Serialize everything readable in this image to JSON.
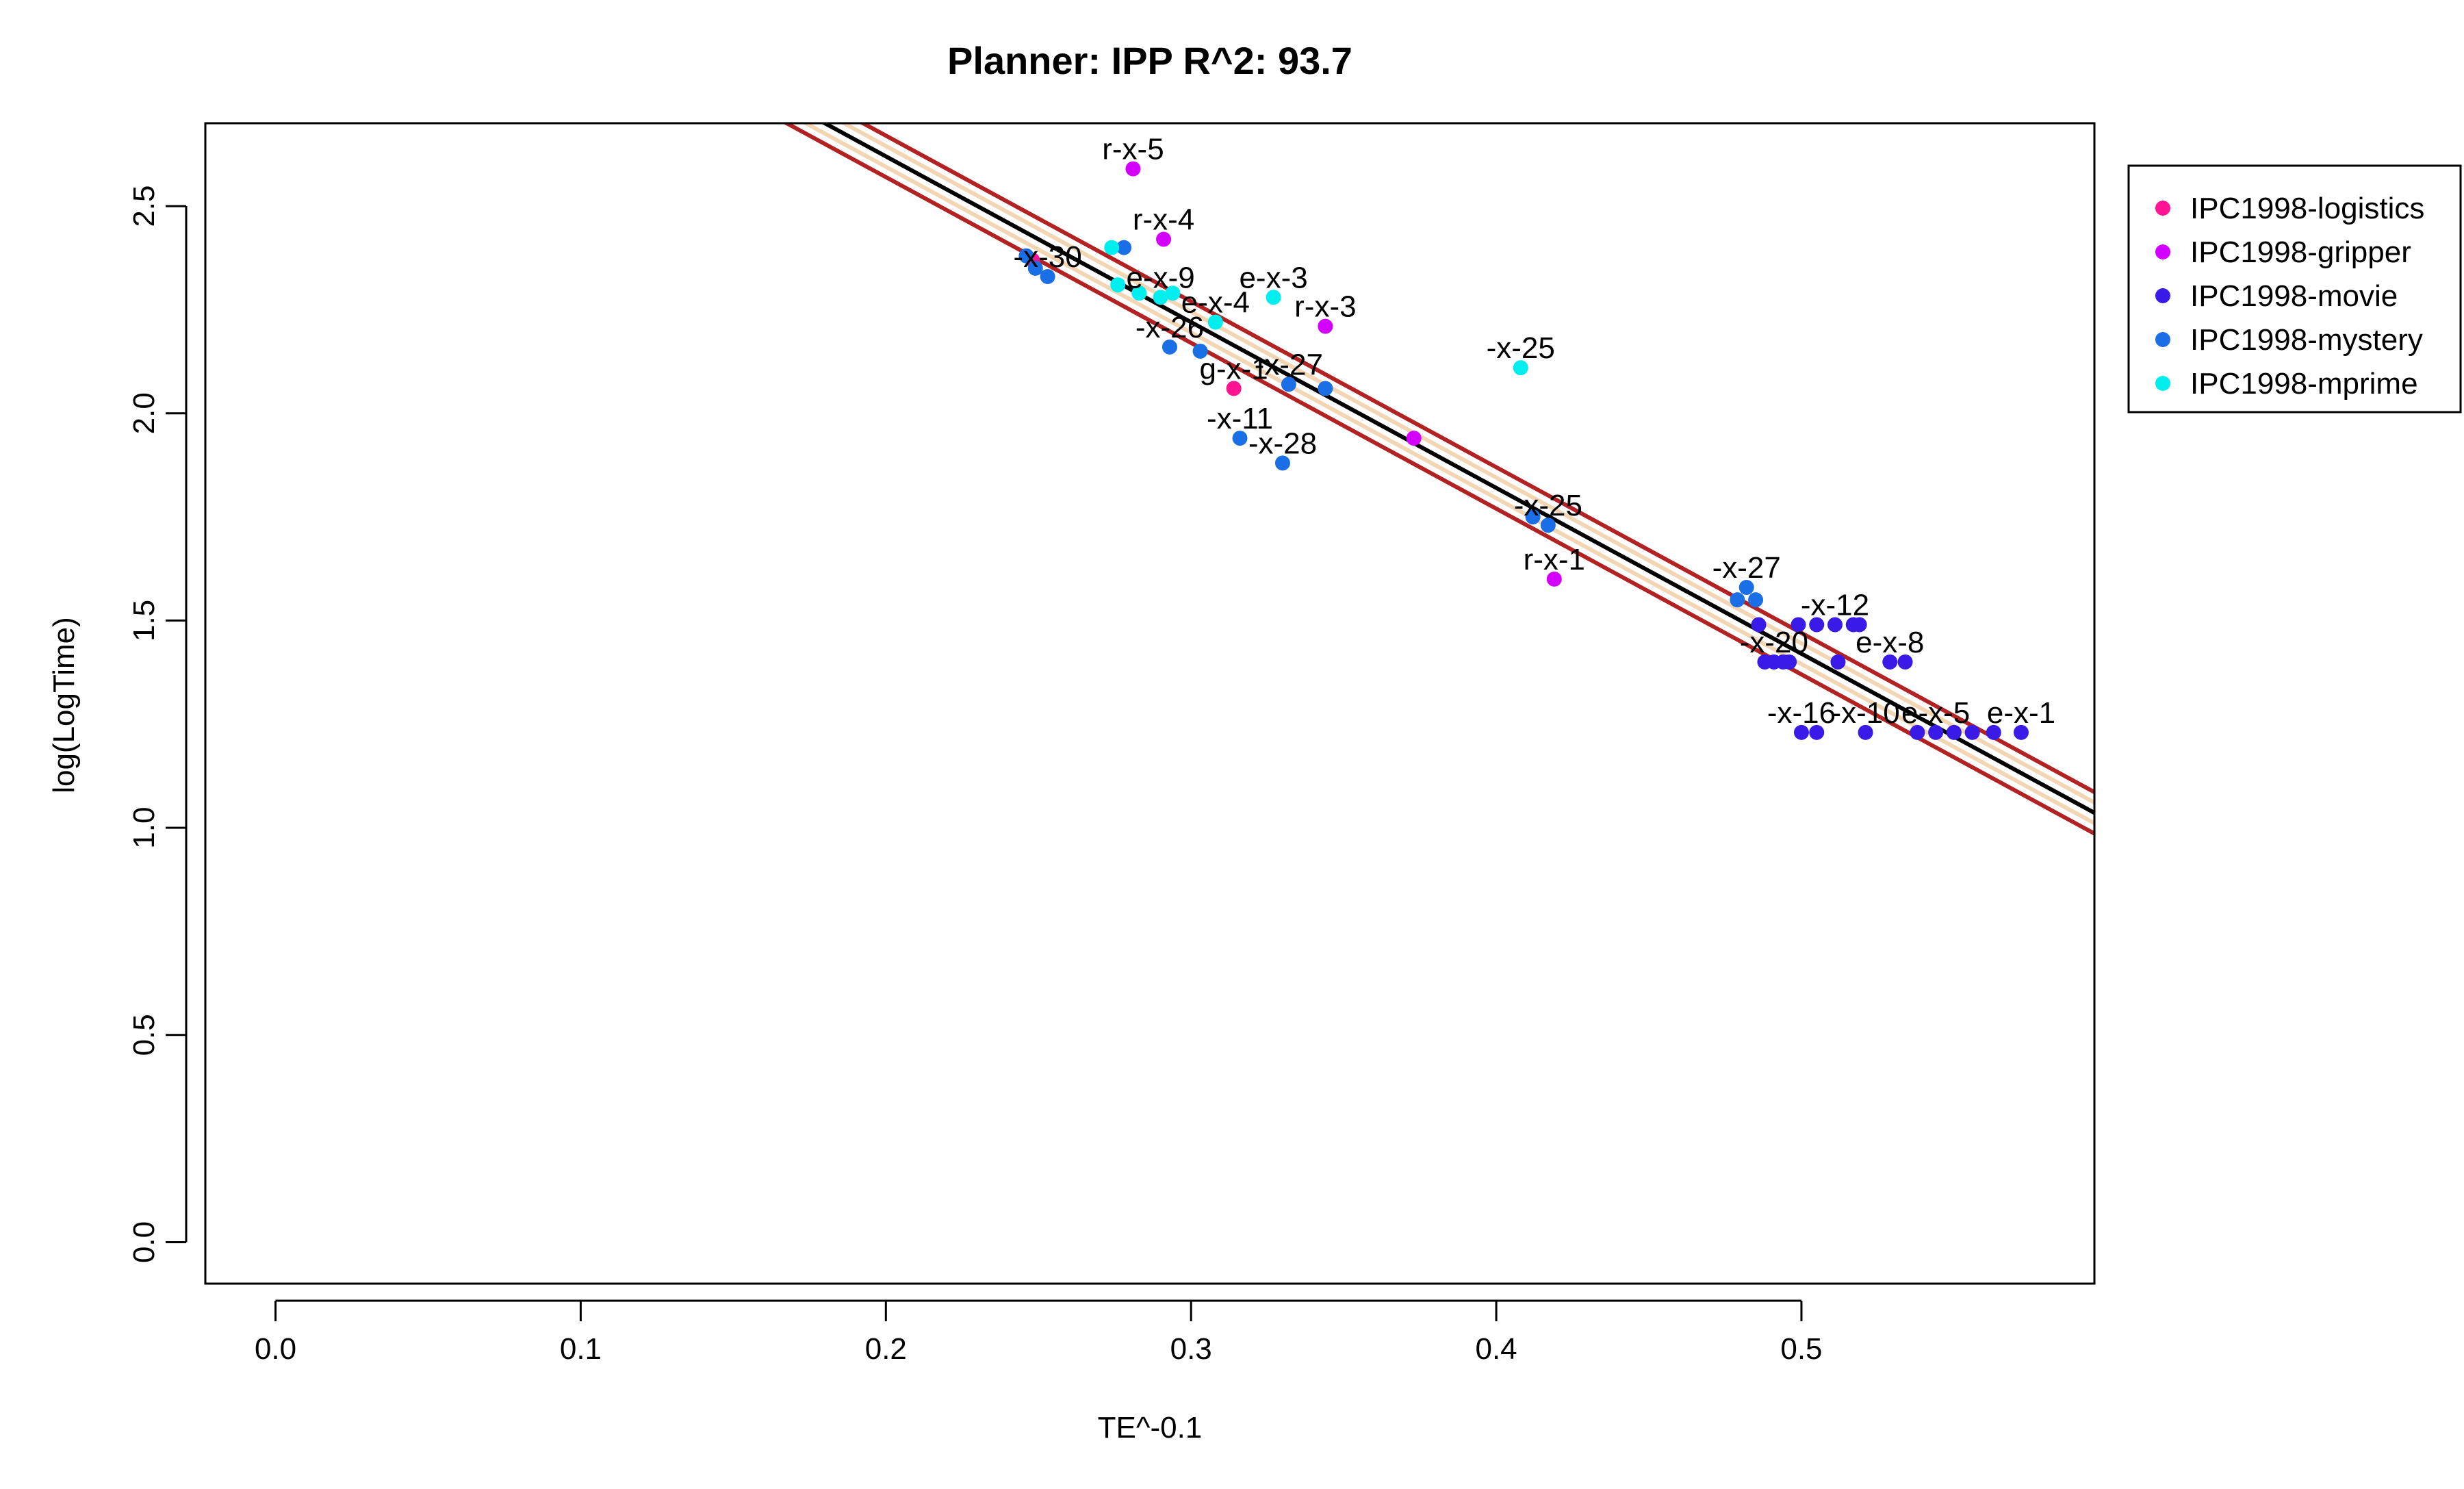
{
  "chart_data": {
    "type": "scatter",
    "title": "Planner: IPP R^2: 93.7",
    "xlabel": "TE^-0.1",
    "ylabel": "log(LogTime)",
    "xlim": [
      -0.023,
      0.596
    ],
    "ylim": [
      -0.1,
      2.7
    ],
    "x_ticks": [
      "0.0",
      "0.1",
      "0.2",
      "0.3",
      "0.4",
      "0.5"
    ],
    "y_ticks": [
      "0.0",
      "0.5",
      "1.0",
      "1.5",
      "2.0",
      "2.5"
    ],
    "grid": false,
    "legend_position": "outside-right",
    "regression": {
      "slope": -4.0,
      "intercept": 3.42,
      "fit_color": "#000000",
      "inner_band_color": "#F2D6B3",
      "outer_band_color": "#B22222"
    },
    "series": [
      {
        "name": "IPC1998-logistics",
        "color": "#FF1493",
        "points": [
          {
            "x": 0.314,
            "y": 2.06,
            "label": "g-x-1"
          },
          {
            "x": 0.248,
            "y": 2.37,
            "label": ""
          }
        ]
      },
      {
        "name": "IPC1998-gripper",
        "color": "#D400FF",
        "points": [
          {
            "x": 0.281,
            "y": 2.59,
            "label": "r-x-5"
          },
          {
            "x": 0.291,
            "y": 2.42,
            "label": "r-x-4"
          },
          {
            "x": 0.344,
            "y": 2.21,
            "label": "r-x-3"
          },
          {
            "x": 0.373,
            "y": 1.94,
            "label": ""
          },
          {
            "x": 0.419,
            "y": 1.6,
            "label": "r-x-1"
          }
        ]
      },
      {
        "name": "IPC1998-movie",
        "color": "#3A1AE6",
        "points": [
          {
            "x": 0.486,
            "y": 1.49,
            "label": ""
          },
          {
            "x": 0.499,
            "y": 1.49,
            "label": ""
          },
          {
            "x": 0.505,
            "y": 1.49,
            "label": ""
          },
          {
            "x": 0.511,
            "y": 1.49,
            "label": "-x-12"
          },
          {
            "x": 0.517,
            "y": 1.49,
            "label": ""
          },
          {
            "x": 0.519,
            "y": 1.49,
            "label": ""
          },
          {
            "x": 0.488,
            "y": 1.4,
            "label": ""
          },
          {
            "x": 0.491,
            "y": 1.4,
            "label": "-x-20"
          },
          {
            "x": 0.494,
            "y": 1.4,
            "label": ""
          },
          {
            "x": 0.496,
            "y": 1.4,
            "label": ""
          },
          {
            "x": 0.512,
            "y": 1.4,
            "label": ""
          },
          {
            "x": 0.529,
            "y": 1.4,
            "label": "e-x-8"
          },
          {
            "x": 0.534,
            "y": 1.4,
            "label": ""
          },
          {
            "x": 0.5,
            "y": 1.23,
            "label": "-x-16"
          },
          {
            "x": 0.505,
            "y": 1.23,
            "label": ""
          },
          {
            "x": 0.521,
            "y": 1.23,
            "label": "-x-10"
          },
          {
            "x": 0.538,
            "y": 1.23,
            "label": ""
          },
          {
            "x": 0.544,
            "y": 1.23,
            "label": "e-x-5"
          },
          {
            "x": 0.55,
            "y": 1.23,
            "label": ""
          },
          {
            "x": 0.556,
            "y": 1.23,
            "label": ""
          },
          {
            "x": 0.563,
            "y": 1.23,
            "label": ""
          },
          {
            "x": 0.572,
            "y": 1.23,
            "label": "e-x-1"
          }
        ]
      },
      {
        "name": "IPC1998-mystery",
        "color": "#1A6FE6",
        "points": [
          {
            "x": 0.246,
            "y": 2.38,
            "label": ""
          },
          {
            "x": 0.249,
            "y": 2.35,
            "label": ""
          },
          {
            "x": 0.253,
            "y": 2.33,
            "label": "-x-30"
          },
          {
            "x": 0.278,
            "y": 2.4,
            "label": ""
          },
          {
            "x": 0.293,
            "y": 2.16,
            "label": "-x-26"
          },
          {
            "x": 0.303,
            "y": 2.15,
            "label": ""
          },
          {
            "x": 0.316,
            "y": 1.94,
            "label": "-x-11"
          },
          {
            "x": 0.33,
            "y": 1.88,
            "label": "-x-28"
          },
          {
            "x": 0.332,
            "y": 2.07,
            "label": "-x-27"
          },
          {
            "x": 0.344,
            "y": 2.06,
            "label": ""
          },
          {
            "x": 0.412,
            "y": 1.75,
            "label": ""
          },
          {
            "x": 0.417,
            "y": 1.73,
            "label": "-x-25"
          },
          {
            "x": 0.479,
            "y": 1.55,
            "label": ""
          },
          {
            "x": 0.482,
            "y": 1.58,
            "label": "-x-27"
          },
          {
            "x": 0.485,
            "y": 1.55,
            "label": ""
          }
        ]
      },
      {
        "name": "IPC1998-mprime",
        "color": "#00EEEE",
        "points": [
          {
            "x": 0.276,
            "y": 2.31,
            "label": ""
          },
          {
            "x": 0.283,
            "y": 2.29,
            "label": ""
          },
          {
            "x": 0.29,
            "y": 2.28,
            "label": "e-x-9"
          },
          {
            "x": 0.294,
            "y": 2.29,
            "label": ""
          },
          {
            "x": 0.308,
            "y": 2.22,
            "label": "e-x-4"
          },
          {
            "x": 0.327,
            "y": 2.28,
            "label": "e-x-3"
          },
          {
            "x": 0.274,
            "y": 2.4,
            "label": ""
          },
          {
            "x": 0.408,
            "y": 2.11,
            "label": "-x-25"
          }
        ]
      }
    ]
  }
}
